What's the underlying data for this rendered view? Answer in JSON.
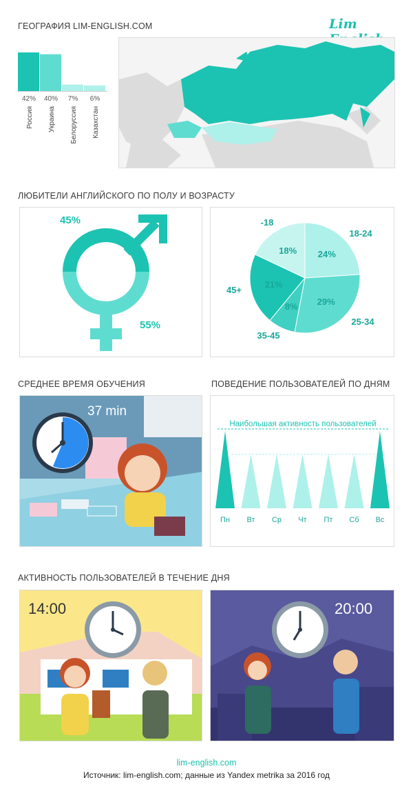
{
  "header": {
    "geo_title": "ГЕОГРАФИЯ LIM-ENGLISH.COM",
    "logo": "Lim English"
  },
  "sections": {
    "gender_age_title": "ЛЮБИТЕЛИ АНГЛИЙСКОГО ПО ПОЛУ И ВОЗРАСТУ",
    "study_time_title": "СРЕДНЕЕ ВРЕМЯ ОБУЧЕНИЯ",
    "days_title": "ПОВЕДЕНИЕ ПОЛЬЗОВАТЕЛЕЙ ПО ДНЯМ",
    "daytime_title": "АКТИВНОСТЬ ПОЛЬЗОВАТЕЛЕЙ В ТЕЧЕНИЕ ДНЯ"
  },
  "gender": {
    "male_pct": "45%",
    "female_pct": "55%"
  },
  "study": {
    "time_label": "37 min"
  },
  "daytime": {
    "day_time": "14:00",
    "evening_time": "20:00"
  },
  "footer": {
    "link": "lim-english.com",
    "source": "Источник: lim-english.com; данные из Yandex metrika за 2016 год"
  },
  "colors": {
    "accent": "#1cc3b2",
    "accent_mid": "#5fdcd0",
    "accent_light": "#aef0ea",
    "map_grey": "#dcdcdc"
  },
  "chart_data": [
    {
      "type": "bar",
      "categories": [
        "Россия",
        "Украина",
        "Белоруссия",
        "Казахстан"
      ],
      "values": [
        42,
        40,
        7,
        6
      ],
      "labels": [
        "42%",
        "40%",
        "7%",
        "6%"
      ],
      "ylim": [
        0,
        42
      ]
    },
    {
      "type": "pie",
      "categories": [
        "18-24",
        "25-34",
        "35-45",
        "45+",
        "-18"
      ],
      "values": [
        24,
        29,
        8,
        21,
        18
      ],
      "labels": [
        "24%",
        "29%",
        "8%",
        "21%",
        "18%"
      ],
      "colors": [
        "#aef0ea",
        "#5fdcd0",
        "#3fd0c2",
        "#1cc3b2",
        "#c6f5f0"
      ]
    },
    {
      "type": "bar",
      "categories": [
        "Пн",
        "Вт",
        "Ср",
        "Чт",
        "Пт",
        "Сб",
        "Вс"
      ],
      "values": [
        1.0,
        0.7,
        0.7,
        0.7,
        0.7,
        0.7,
        1.0
      ],
      "annotation": "Наибольшая активность пользователей"
    }
  ]
}
